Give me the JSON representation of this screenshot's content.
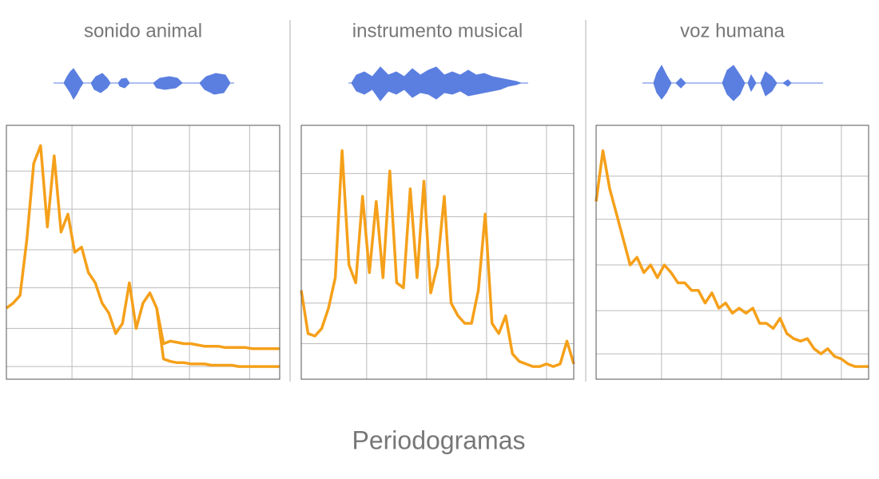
{
  "title": "Periodogramas",
  "chart_data": [
    {
      "type": "line",
      "title": "sonido animal",
      "x": [
        0,
        2.5,
        5,
        7.5,
        10,
        12.5,
        15,
        17.5,
        20,
        22.5,
        25,
        27.5,
        30,
        32.5,
        35,
        37.5,
        40,
        42.5,
        45,
        47.5,
        50,
        52.5,
        55,
        57.5,
        60,
        62.5,
        65,
        67.5,
        70,
        72.5,
        75,
        77.5,
        80,
        82.5,
        85,
        87.5,
        90,
        92.5,
        95,
        97.5,
        100
      ],
      "series": [
        {
          "color": "#f5a01a",
          "values": [
            28,
            30,
            33,
            55,
            85,
            92,
            60,
            88,
            58,
            65,
            50,
            52,
            42,
            38,
            30,
            26,
            18,
            22,
            38,
            20,
            30,
            34,
            28,
            14,
            15,
            14.5,
            14,
            14,
            13.5,
            13,
            13,
            13,
            12.5,
            12.5,
            12.5,
            12.5,
            12,
            12,
            12,
            12,
            12
          ]
        },
        {
          "color": "#f5a01a",
          "values": [
            null,
            null,
            null,
            null,
            null,
            null,
            null,
            null,
            null,
            null,
            null,
            null,
            null,
            null,
            null,
            null,
            null,
            null,
            null,
            null,
            null,
            null,
            28,
            8,
            7,
            6.5,
            6.5,
            6,
            6,
            6,
            5.5,
            5.5,
            5.5,
            5.5,
            5,
            5,
            5,
            5,
            5,
            5,
            5
          ]
        }
      ],
      "xlim": [
        0,
        100
      ],
      "ylim": [
        0,
        100
      ],
      "xticks": [
        24,
        46,
        67,
        89
      ],
      "yticks": [
        5,
        20,
        36,
        51,
        67,
        82
      ],
      "grid": true
    },
    {
      "type": "line",
      "title": "instrumento musical",
      "x": [
        0,
        2.5,
        5,
        7.5,
        10,
        12.5,
        15,
        17.5,
        20,
        22.5,
        25,
        27.5,
        30,
        32.5,
        35,
        37.5,
        40,
        42.5,
        45,
        47.5,
        50,
        52.5,
        55,
        57.5,
        60,
        62.5,
        65,
        67.5,
        70,
        72.5,
        75,
        77.5,
        80,
        82.5,
        85,
        87.5,
        90,
        92.5,
        95,
        97.5,
        100
      ],
      "series": [
        {
          "color": "#f5a01a",
          "values": [
            35,
            18,
            17,
            20,
            28,
            40,
            90,
            45,
            38,
            72,
            42,
            70,
            40,
            82,
            38,
            36,
            75,
            40,
            78,
            34,
            45,
            72,
            30,
            25,
            22,
            22,
            35,
            65,
            22,
            18,
            25,
            10,
            7,
            6,
            5,
            5,
            6,
            5,
            6,
            15,
            6
          ]
        }
      ],
      "xlim": [
        0,
        100
      ],
      "ylim": [
        0,
        100
      ],
      "xticks": [
        24,
        46,
        68,
        90
      ],
      "yticks": [
        14,
        30,
        47,
        64,
        81
      ],
      "grid": true
    },
    {
      "type": "line",
      "title": "voz humana",
      "x": [
        0,
        2.5,
        5,
        7.5,
        10,
        12.5,
        15,
        17.5,
        20,
        22.5,
        25,
        27.5,
        30,
        32.5,
        35,
        37.5,
        40,
        42.5,
        45,
        47.5,
        50,
        52.5,
        55,
        57.5,
        60,
        62.5,
        65,
        67.5,
        70,
        72.5,
        75,
        77.5,
        80,
        82.5,
        85,
        87.5,
        90,
        92.5,
        95,
        97.5,
        100
      ],
      "series": [
        {
          "color": "#f5a01a",
          "values": [
            70,
            90,
            75,
            65,
            55,
            45,
            48,
            42,
            45,
            40,
            45,
            42,
            38,
            38,
            35,
            35,
            30,
            34,
            28,
            30,
            26,
            28,
            26,
            28,
            22,
            22,
            20,
            24,
            18,
            16,
            15,
            16,
            12,
            10,
            12,
            9,
            8,
            6,
            5,
            5,
            5
          ]
        }
      ],
      "xlim": [
        0,
        100
      ],
      "ylim": [
        0,
        100
      ],
      "xticks": [
        24,
        46,
        68,
        90
      ],
      "yticks": [
        10,
        27,
        45,
        63,
        80
      ],
      "grid": true
    }
  ]
}
